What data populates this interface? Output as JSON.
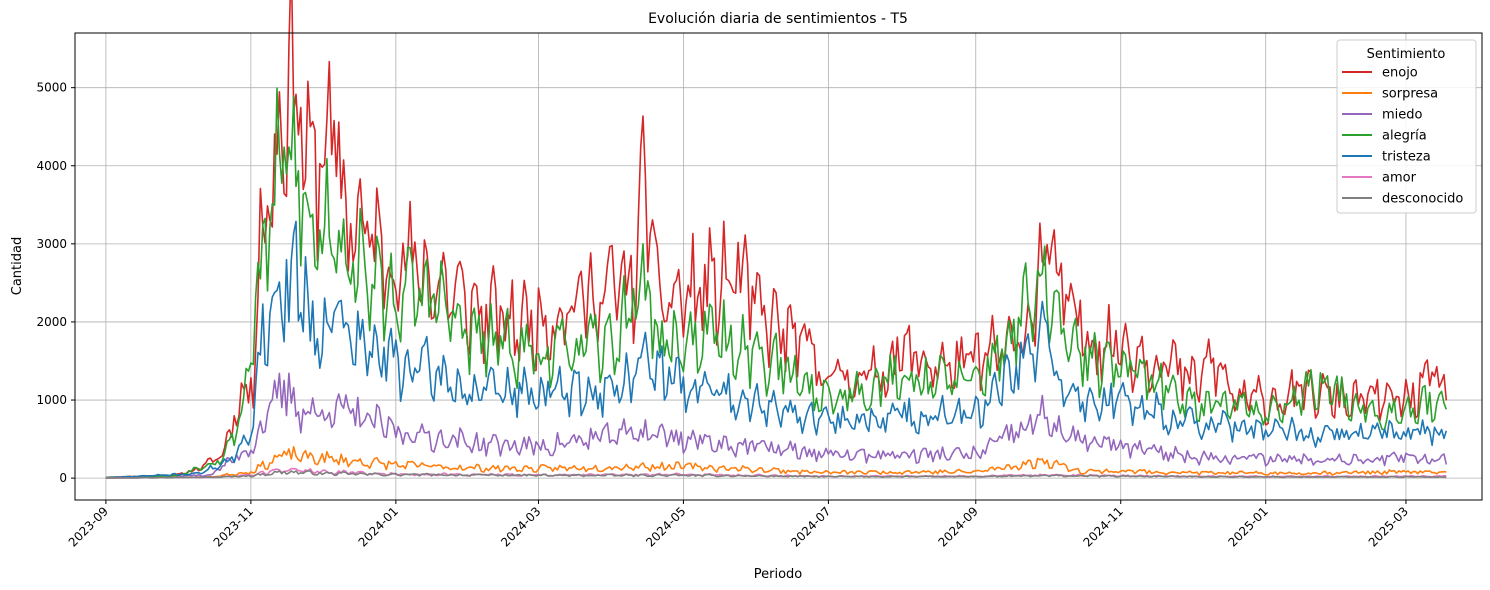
{
  "chart_data": {
    "type": "line",
    "title": "Evolución diaria de sentimientos - T5",
    "xlabel": "Periodo",
    "ylabel": "Cantidad",
    "xlim": [
      "2023-08-19",
      "2025-04-02"
    ],
    "ylim": [
      -280,
      5700
    ],
    "yticks": [
      0,
      1000,
      2000,
      3000,
      4000,
      5000
    ],
    "xticks": [
      "2023-09",
      "2023-11",
      "2024-01",
      "2024-03",
      "2024-05",
      "2024-07",
      "2024-09",
      "2024-11",
      "2025-01",
      "2025-03"
    ],
    "grid": true,
    "legend": {
      "title": "Sentimiento",
      "placement": "upper-right"
    },
    "x_range": [
      "2023-09-01",
      "2025-03-18"
    ],
    "series": [
      {
        "name": "enojo",
        "color": "#d62728",
        "amp": 0.22,
        "seed": 11,
        "points": [
          [
            "2023-09-01",
            10
          ],
          [
            "2023-10-01",
            40
          ],
          [
            "2023-10-10",
            120
          ],
          [
            "2023-10-20",
            300
          ],
          [
            "2023-10-27",
            1000
          ],
          [
            "2023-11-02",
            1200
          ],
          [
            "2023-11-05",
            3300
          ],
          [
            "2023-11-10",
            3700
          ],
          [
            "2023-11-15",
            5000
          ],
          [
            "2023-11-20",
            5200
          ],
          [
            "2023-11-25",
            3900
          ],
          [
            "2023-12-01",
            4200
          ],
          [
            "2023-12-05",
            4400
          ],
          [
            "2023-12-10",
            3500
          ],
          [
            "2023-12-20",
            3100
          ],
          [
            "2024-01-01",
            2800
          ],
          [
            "2024-01-15",
            2600
          ],
          [
            "2024-02-01",
            2200
          ],
          [
            "2024-02-15",
            2000
          ],
          [
            "2024-03-01",
            2000
          ],
          [
            "2024-03-20",
            2300
          ],
          [
            "2024-04-10",
            2500
          ],
          [
            "2024-04-15",
            3900
          ],
          [
            "2024-04-20",
            2300
          ],
          [
            "2024-05-01",
            2300
          ],
          [
            "2024-05-25",
            2600
          ],
          [
            "2024-06-01",
            2100
          ],
          [
            "2024-06-20",
            1700
          ],
          [
            "2024-07-01",
            1300
          ],
          [
            "2024-07-20",
            1300
          ],
          [
            "2024-08-01",
            1600
          ],
          [
            "2024-08-20",
            1400
          ],
          [
            "2024-09-01",
            1500
          ],
          [
            "2024-09-20",
            1700
          ],
          [
            "2024-10-01",
            3000
          ],
          [
            "2024-10-08",
            2200
          ],
          [
            "2024-10-20",
            1800
          ],
          [
            "2024-11-01",
            1700
          ],
          [
            "2024-11-20",
            1500
          ],
          [
            "2024-12-01",
            1200
          ],
          [
            "2024-12-10",
            1500
          ],
          [
            "2024-12-20",
            1000
          ],
          [
            "2025-01-01",
            1000
          ],
          [
            "2025-01-20",
            1100
          ],
          [
            "2025-02-01",
            1000
          ],
          [
            "2025-02-15",
            1000
          ],
          [
            "2025-03-01",
            1000
          ],
          [
            "2025-03-15",
            1300
          ],
          [
            "2025-03-18",
            1000
          ]
        ]
      },
      {
        "name": "sorpresa",
        "color": "#ff7f0e",
        "amp": 0.3,
        "seed": 23,
        "points": [
          [
            "2023-09-01",
            2
          ],
          [
            "2023-10-15",
            15
          ],
          [
            "2023-11-01",
            80
          ],
          [
            "2023-11-15",
            300
          ],
          [
            "2023-12-01",
            250
          ],
          [
            "2024-01-01",
            170
          ],
          [
            "2024-02-01",
            130
          ],
          [
            "2024-03-01",
            120
          ],
          [
            "2024-04-15",
            150
          ],
          [
            "2024-05-01",
            150
          ],
          [
            "2024-06-01",
            110
          ],
          [
            "2024-07-01",
            70
          ],
          [
            "2024-08-01",
            80
          ],
          [
            "2024-09-01",
            80
          ],
          [
            "2024-10-01",
            220
          ],
          [
            "2024-10-15",
            90
          ],
          [
            "2024-11-01",
            90
          ],
          [
            "2024-12-01",
            70
          ],
          [
            "2025-01-01",
            60
          ],
          [
            "2025-02-01",
            70
          ],
          [
            "2025-03-01",
            80
          ],
          [
            "2025-03-18",
            70
          ]
        ]
      },
      {
        "name": "miedo",
        "color": "#9467bd",
        "amp": 0.28,
        "seed": 37,
        "points": [
          [
            "2023-09-01",
            3
          ],
          [
            "2023-10-15",
            40
          ],
          [
            "2023-11-01",
            400
          ],
          [
            "2023-11-15",
            1150
          ],
          [
            "2023-11-25",
            800
          ],
          [
            "2023-12-05",
            900
          ],
          [
            "2024-01-01",
            600
          ],
          [
            "2024-02-01",
            450
          ],
          [
            "2024-03-01",
            400
          ],
          [
            "2024-04-15",
            600
          ],
          [
            "2024-05-01",
            500
          ],
          [
            "2024-06-01",
            400
          ],
          [
            "2024-07-01",
            300
          ],
          [
            "2024-08-01",
            300
          ],
          [
            "2024-09-01",
            300
          ],
          [
            "2024-10-01",
            800
          ],
          [
            "2024-10-10",
            500
          ],
          [
            "2024-11-01",
            400
          ],
          [
            "2024-12-01",
            280
          ],
          [
            "2025-01-01",
            250
          ],
          [
            "2025-02-01",
            250
          ],
          [
            "2025-03-01",
            250
          ],
          [
            "2025-03-18",
            250
          ]
        ]
      },
      {
        "name": "alegría",
        "color": "#2ca02c",
        "amp": 0.2,
        "seed": 53,
        "points": [
          [
            "2023-09-01",
            10
          ],
          [
            "2023-10-01",
            30
          ],
          [
            "2023-10-20",
            250
          ],
          [
            "2023-10-28",
            800
          ],
          [
            "2023-11-05",
            2600
          ],
          [
            "2023-11-12",
            3800
          ],
          [
            "2023-11-16",
            4100
          ],
          [
            "2023-11-22",
            3800
          ],
          [
            "2023-11-26",
            3000
          ],
          [
            "2023-12-05",
            3400
          ],
          [
            "2023-12-15",
            2700
          ],
          [
            "2024-01-01",
            2300
          ],
          [
            "2024-01-15",
            2400
          ],
          [
            "2024-02-01",
            1800
          ],
          [
            "2024-03-01",
            1600
          ],
          [
            "2024-04-01",
            1700
          ],
          [
            "2024-04-15",
            2600
          ],
          [
            "2024-04-20",
            1700
          ],
          [
            "2024-05-15",
            1800
          ],
          [
            "2024-06-01",
            1600
          ],
          [
            "2024-07-01",
            1000
          ],
          [
            "2024-08-01",
            1300
          ],
          [
            "2024-09-01",
            1200
          ],
          [
            "2024-10-01",
            2500
          ],
          [
            "2024-10-10",
            1600
          ],
          [
            "2024-11-01",
            1400
          ],
          [
            "2024-12-01",
            1000
          ],
          [
            "2025-01-01",
            850
          ],
          [
            "2025-01-25",
            1200
          ],
          [
            "2025-02-15",
            850
          ],
          [
            "2025-03-01",
            900
          ],
          [
            "2025-03-18",
            1000
          ]
        ]
      },
      {
        "name": "tristeza",
        "color": "#1f77b4",
        "amp": 0.22,
        "seed": 71,
        "points": [
          [
            "2023-09-01",
            5
          ],
          [
            "2023-10-10",
            60
          ],
          [
            "2023-10-25",
            250
          ],
          [
            "2023-11-01",
            600
          ],
          [
            "2023-11-05",
            1750
          ],
          [
            "2023-11-12",
            2300
          ],
          [
            "2023-11-18",
            2600
          ],
          [
            "2023-11-24",
            2600
          ],
          [
            "2023-11-26",
            1800
          ],
          [
            "2023-12-05",
            2200
          ],
          [
            "2023-12-15",
            1700
          ],
          [
            "2024-01-01",
            1500
          ],
          [
            "2024-01-20",
            1300
          ],
          [
            "2024-02-01",
            1100
          ],
          [
            "2024-03-01",
            1100
          ],
          [
            "2024-04-01",
            1100
          ],
          [
            "2024-04-15",
            1500
          ],
          [
            "2024-05-01",
            1200
          ],
          [
            "2024-06-01",
            1000
          ],
          [
            "2024-07-01",
            700
          ],
          [
            "2024-08-01",
            800
          ],
          [
            "2024-09-01",
            800
          ],
          [
            "2024-10-01",
            1800
          ],
          [
            "2024-10-10",
            1000
          ],
          [
            "2024-11-01",
            1000
          ],
          [
            "2024-12-01",
            700
          ],
          [
            "2025-01-01",
            600
          ],
          [
            "2025-02-01",
            550
          ],
          [
            "2025-03-01",
            600
          ],
          [
            "2025-03-18",
            600
          ]
        ]
      },
      {
        "name": "amor",
        "color": "#e377c2",
        "amp": 0.3,
        "seed": 89,
        "points": [
          [
            "2023-09-01",
            1
          ],
          [
            "2023-10-15",
            10
          ],
          [
            "2023-11-01",
            40
          ],
          [
            "2023-11-15",
            110
          ],
          [
            "2023-12-01",
            80
          ],
          [
            "2024-01-01",
            50
          ],
          [
            "2024-03-01",
            40
          ],
          [
            "2024-05-01",
            45
          ],
          [
            "2024-07-01",
            25
          ],
          [
            "2024-09-01",
            25
          ],
          [
            "2024-10-01",
            40
          ],
          [
            "2024-11-01",
            30
          ],
          [
            "2025-01-01",
            20
          ],
          [
            "2025-03-18",
            25
          ]
        ]
      },
      {
        "name": "desconocido",
        "color": "#7f7f7f",
        "amp": 0.3,
        "seed": 97,
        "points": [
          [
            "2023-09-01",
            1
          ],
          [
            "2023-10-15",
            10
          ],
          [
            "2023-11-01",
            30
          ],
          [
            "2023-11-15",
            80
          ],
          [
            "2023-12-01",
            60
          ],
          [
            "2024-01-01",
            45
          ],
          [
            "2024-03-01",
            35
          ],
          [
            "2024-05-01",
            35
          ],
          [
            "2024-07-01",
            20
          ],
          [
            "2024-09-01",
            20
          ],
          [
            "2024-10-01",
            30
          ],
          [
            "2024-11-01",
            25
          ],
          [
            "2025-01-01",
            15
          ],
          [
            "2025-03-18",
            15
          ]
        ]
      }
    ]
  }
}
